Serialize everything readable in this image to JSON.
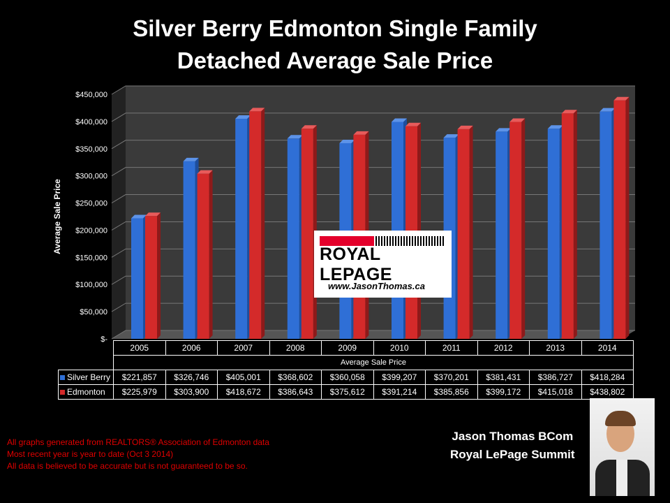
{
  "title_line1": "Silver Berry Edmonton Single Family",
  "title_line2": "Detached Average Sale Price",
  "chart_data": {
    "type": "bar",
    "title": "Silver Berry Edmonton Single Family Detached Average Sale Price",
    "ylabel": "Average Sale Price",
    "xlabel": "Average Sale Price",
    "ylim": [
      0,
      450000
    ],
    "yticks": [
      "$-",
      "$50,000",
      "$100,000",
      "$150,000",
      "$200,000",
      "$250,000",
      "$300,000",
      "$350,000",
      "$400,000",
      "$450,000"
    ],
    "categories": [
      "2005",
      "2006",
      "2007",
      "2008",
      "2009",
      "2010",
      "2011",
      "2012",
      "2013",
      "2014"
    ],
    "series": [
      {
        "name": "Silver Berry",
        "color": "#2f6fd6",
        "values": [
          221857,
          326746,
          405001,
          368602,
          360058,
          399207,
          370201,
          381431,
          386727,
          418284
        ],
        "labels": [
          "$221,857",
          "$326,746",
          "$405,001",
          "$368,602",
          "$360,058",
          "$399,207",
          "$370,201",
          "$381,431",
          "$386,727",
          "$418,284"
        ]
      },
      {
        "name": "Edmonton",
        "color": "#d42a2a",
        "values": [
          225979,
          303900,
          418672,
          386643,
          375612,
          391214,
          385856,
          399172,
          415018,
          438802
        ],
        "labels": [
          "$225,979",
          "$303,900",
          "$418,672",
          "$386,643",
          "$375,612",
          "$391,214",
          "$385,856",
          "$399,172",
          "$415,018",
          "$438,802"
        ]
      }
    ],
    "grid": true
  },
  "logo": {
    "brand": "ROYAL LEPAGE",
    "url": "www.JasonThomas.ca"
  },
  "notes": [
    "All graphs generated from REALTORS® Association of Edmonton data",
    "Most recent year is year to date (Oct 3 2014)",
    "All data is believed to be accurate but is not guaranteed to be so."
  ],
  "signature": [
    "Jason Thomas BCom",
    "Royal LePage Summit"
  ]
}
